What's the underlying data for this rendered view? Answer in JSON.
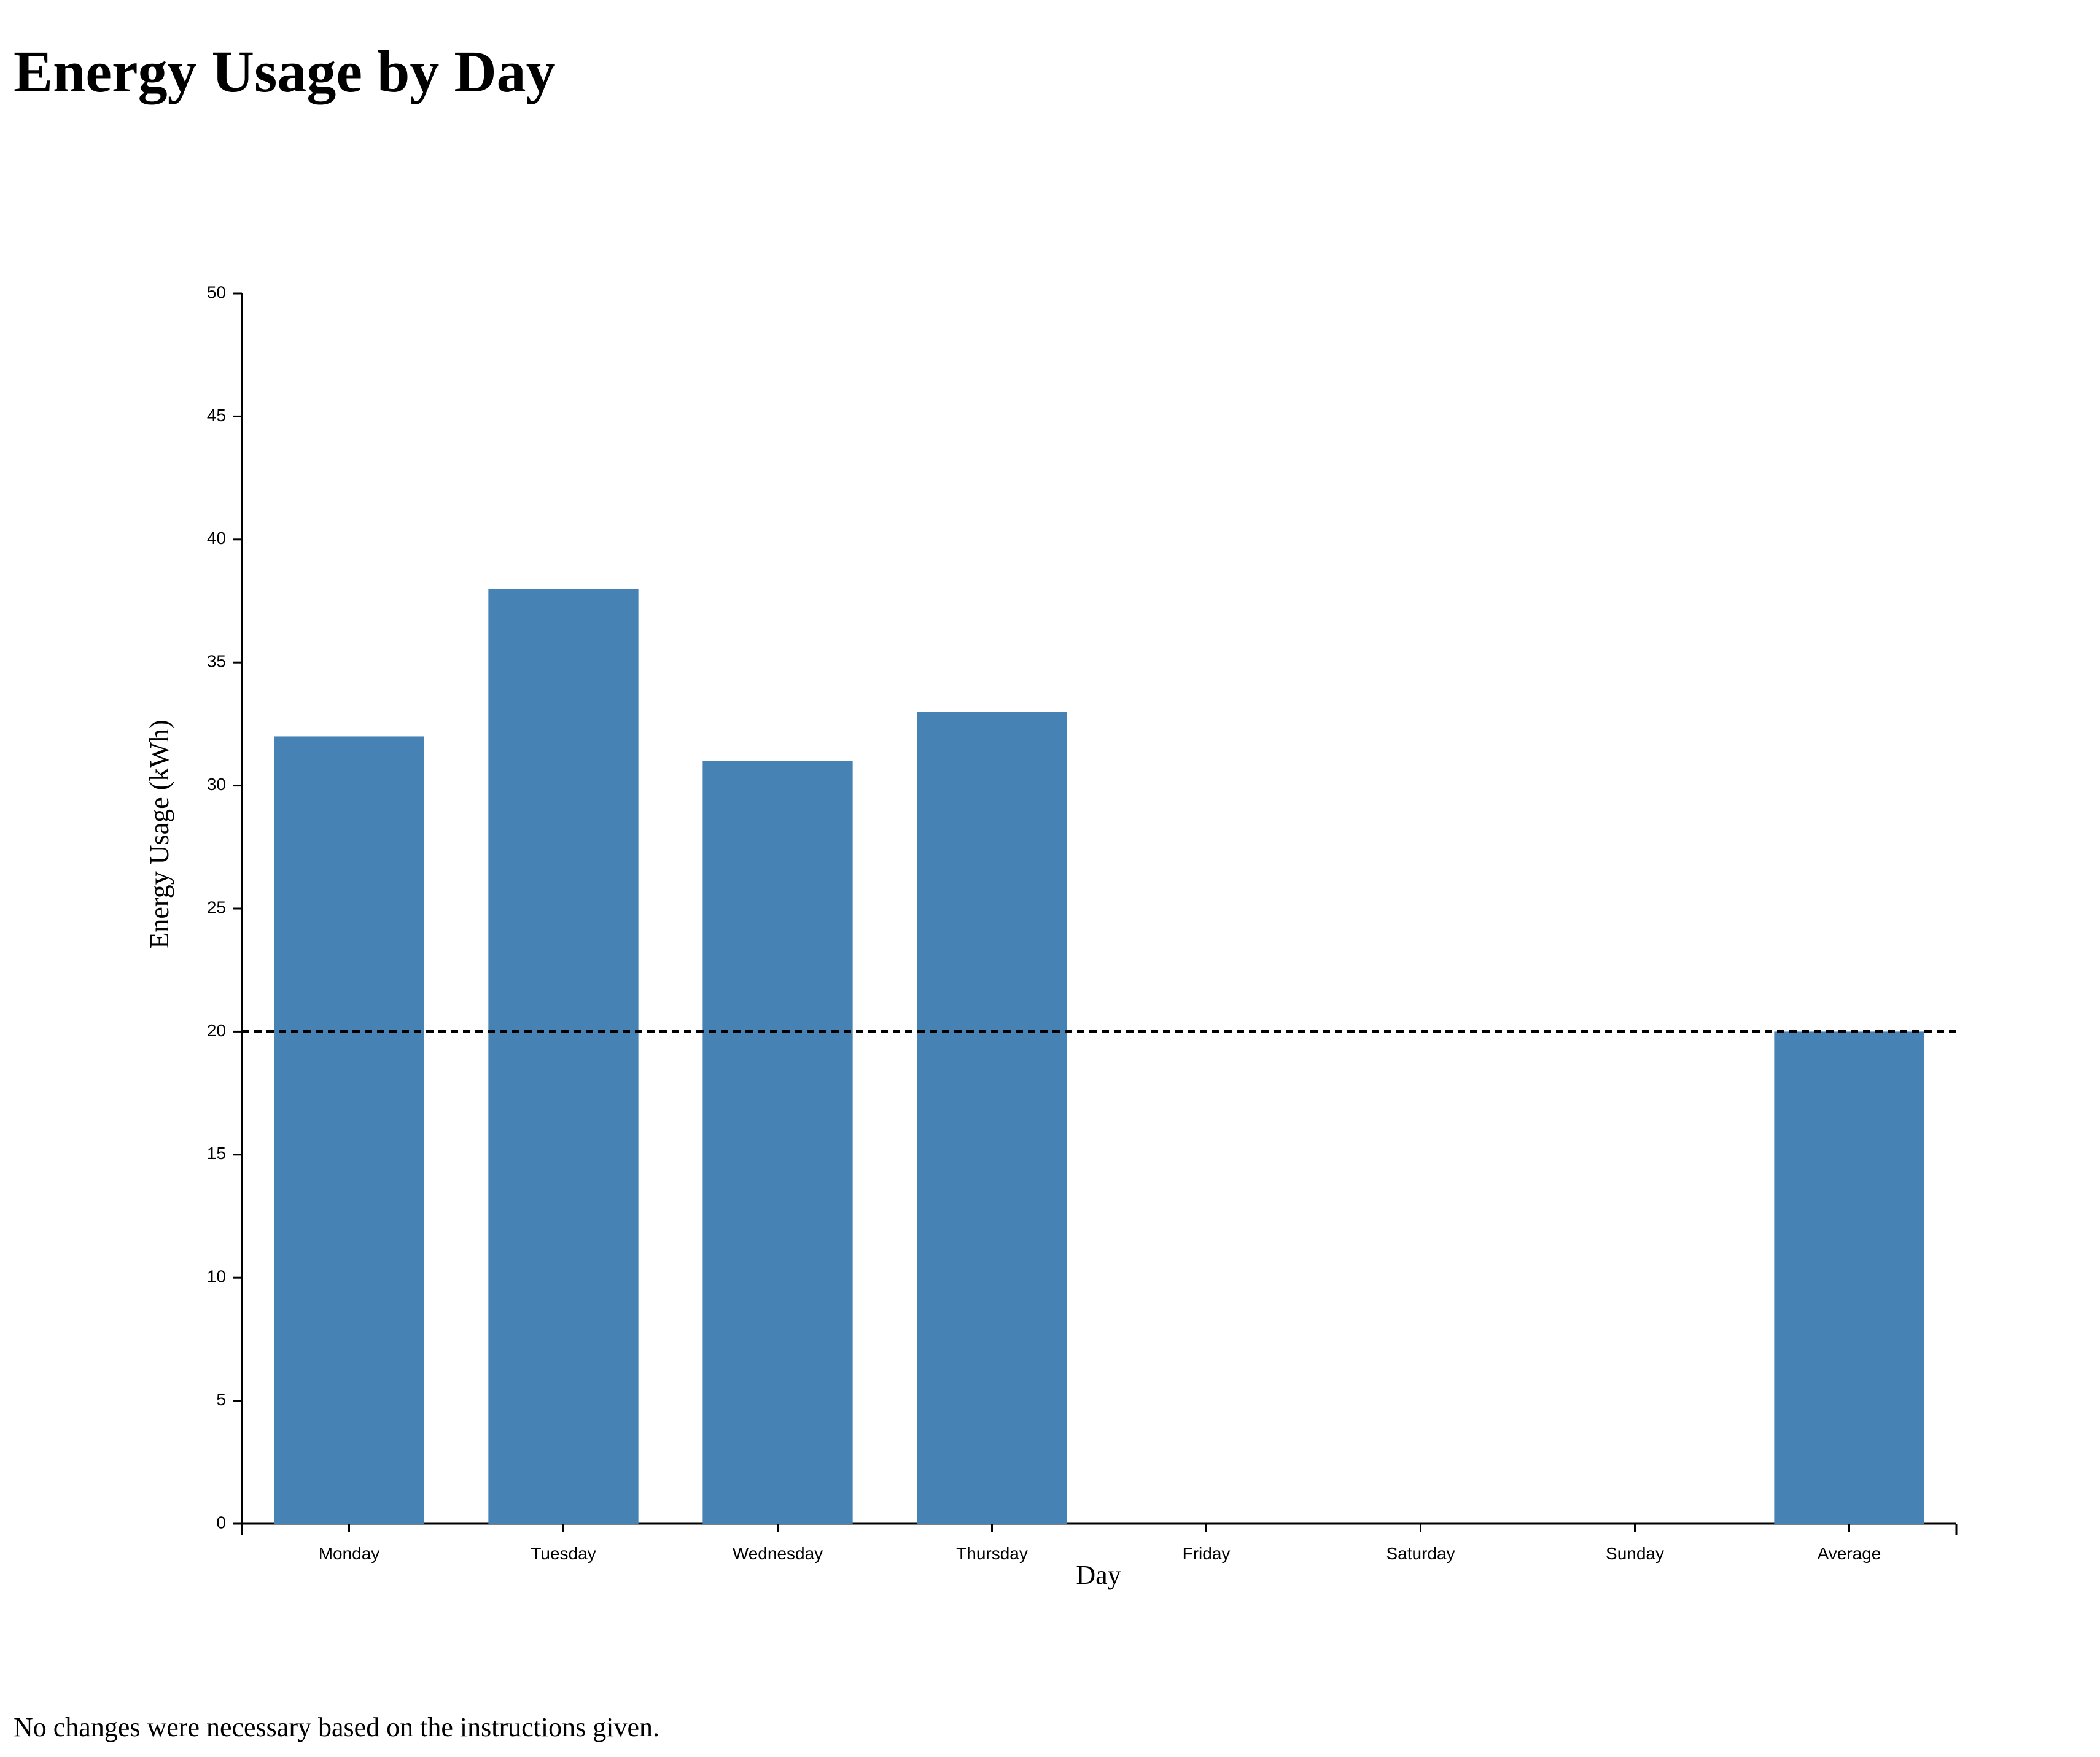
{
  "page": {
    "title": "Energy Usage by Day",
    "footer": "No changes were necessary based on the instructions given."
  },
  "colors": {
    "bar": "#4682b4",
    "axis": "#000000",
    "reference_line": "#000000"
  },
  "chart_data": {
    "type": "bar",
    "categories": [
      "Monday",
      "Tuesday",
      "Wednesday",
      "Thursday",
      "Friday",
      "Saturday",
      "Sunday",
      "Average"
    ],
    "values": [
      32,
      38,
      31,
      33,
      null,
      null,
      null,
      20
    ],
    "xlabel": "Day",
    "ylabel": "Energy Usage (kWh)",
    "ylim": [
      0,
      50
    ],
    "yticks": [
      0,
      5,
      10,
      15,
      20,
      25,
      30,
      35,
      40,
      45,
      50
    ],
    "reference_line": {
      "value": 20,
      "style": "dashed"
    },
    "grid": false,
    "legend": "none"
  }
}
